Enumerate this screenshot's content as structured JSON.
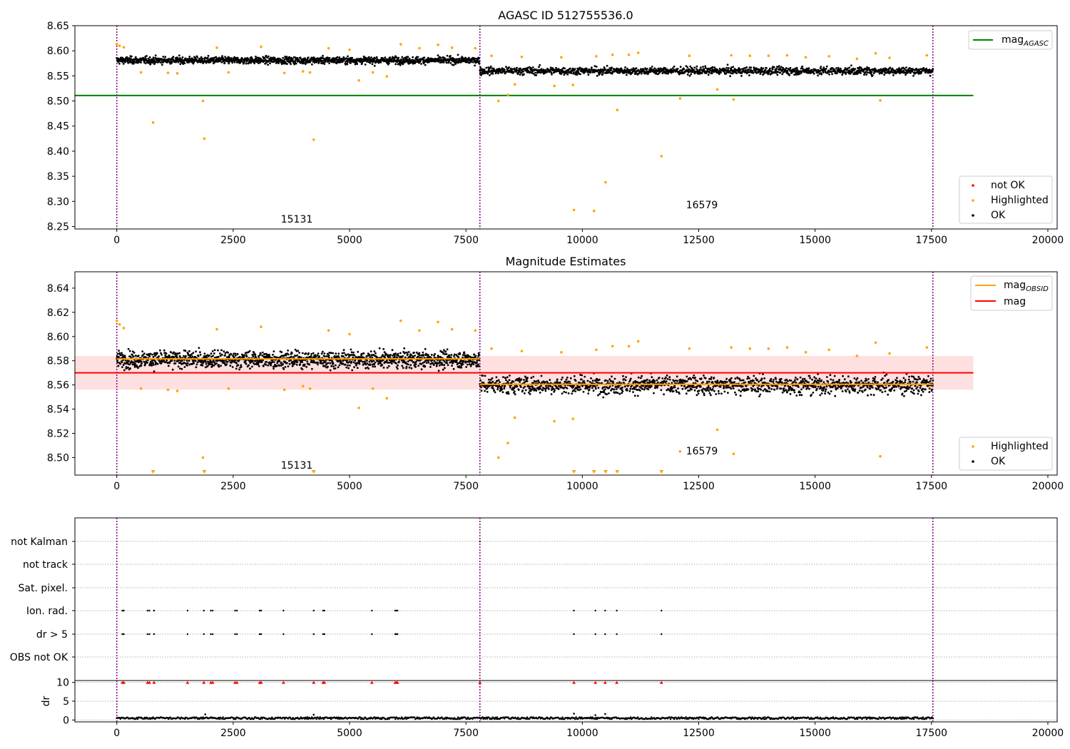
{
  "chart_data": [
    {
      "id": "top",
      "type": "scatter",
      "title": "AGASC ID 512755536.0",
      "xlim": [
        -900,
        20200
      ],
      "ylim": [
        8.245,
        8.65
      ],
      "xticks": [
        0,
        2500,
        5000,
        7500,
        10000,
        12500,
        15000,
        17500,
        20000
      ],
      "yticks": [
        8.25,
        8.3,
        8.35,
        8.4,
        8.45,
        8.5,
        8.55,
        8.6,
        8.65
      ],
      "ytick_labels": [
        "8.25",
        "8.30",
        "8.35",
        "8.40",
        "8.45",
        "8.50",
        "8.55",
        "8.60",
        "8.65"
      ],
      "obs_boundaries": [
        0,
        7800,
        17530
      ],
      "obs_labels": [
        {
          "text": "15131",
          "x": 3900,
          "y": 8.262
        },
        {
          "text": "16579",
          "x": 12600,
          "y": 8.29
        }
      ],
      "hlines": [
        {
          "name": "mag_AGASC",
          "y": 8.511,
          "x0": -900,
          "x1": 18400,
          "color": "#008000"
        }
      ],
      "ok_bands": [
        {
          "x0": 0,
          "x1": 7790,
          "center": 8.581,
          "spread": 0.022
        },
        {
          "x0": 7800,
          "x1": 17530,
          "center": 8.56,
          "spread": 0.024
        }
      ],
      "highlighted": [
        [
          0,
          8.613
        ],
        [
          60,
          8.61
        ],
        [
          150,
          8.607
        ],
        [
          520,
          8.557
        ],
        [
          780,
          8.457
        ],
        [
          1100,
          8.556
        ],
        [
          1300,
          8.555
        ],
        [
          1850,
          8.5
        ],
        [
          1880,
          8.425
        ],
        [
          2150,
          8.606
        ],
        [
          2400,
          8.557
        ],
        [
          3100,
          8.608
        ],
        [
          3600,
          8.556
        ],
        [
          4000,
          8.559
        ],
        [
          4150,
          8.557
        ],
        [
          4230,
          8.423
        ],
        [
          4550,
          8.605
        ],
        [
          5000,
          8.602
        ],
        [
          5200,
          8.541
        ],
        [
          5500,
          8.557
        ],
        [
          5800,
          8.549
        ],
        [
          6100,
          8.613
        ],
        [
          6500,
          8.605
        ],
        [
          6900,
          8.612
        ],
        [
          7200,
          8.606
        ],
        [
          7700,
          8.605
        ],
        [
          8050,
          8.59
        ],
        [
          8200,
          8.5
        ],
        [
          8400,
          8.512
        ],
        [
          8550,
          8.533
        ],
        [
          8700,
          8.588
        ],
        [
          9400,
          8.53
        ],
        [
          9550,
          8.587
        ],
        [
          9800,
          8.532
        ],
        [
          9820,
          8.283
        ],
        [
          10250,
          8.281
        ],
        [
          10300,
          8.589
        ],
        [
          10500,
          8.338
        ],
        [
          10650,
          8.592
        ],
        [
          10750,
          8.482
        ],
        [
          11000,
          8.592
        ],
        [
          11200,
          8.596
        ],
        [
          11700,
          8.39
        ],
        [
          12100,
          8.505
        ],
        [
          12300,
          8.59
        ],
        [
          12900,
          8.523
        ],
        [
          13200,
          8.591
        ],
        [
          13250,
          8.503
        ],
        [
          13600,
          8.59
        ],
        [
          14000,
          8.59
        ],
        [
          14400,
          8.591
        ],
        [
          14800,
          8.587
        ],
        [
          15300,
          8.589
        ],
        [
          15900,
          8.584
        ],
        [
          16300,
          8.595
        ],
        [
          16400,
          8.501
        ],
        [
          16600,
          8.586
        ],
        [
          17400,
          8.591
        ]
      ],
      "legend": {
        "placement": "upper right",
        "entries": [
          {
            "label": "mag",
            "subscript": "AGASC",
            "kind": "line",
            "color": "#008000"
          }
        ]
      },
      "legend2": {
        "placement": "lower right",
        "entries": [
          {
            "label": "not OK",
            "kind": "dot",
            "color": "#ff0000"
          },
          {
            "label": "Highlighted",
            "kind": "dot",
            "color": "#ffa500"
          },
          {
            "label": "OK",
            "kind": "dot",
            "color": "#000000"
          }
        ]
      }
    },
    {
      "id": "middle",
      "type": "scatter",
      "title": "Magnitude Estimates",
      "xlim": [
        -900,
        20200
      ],
      "ylim": [
        8.4855,
        8.6535
      ],
      "xticks": [
        0,
        2500,
        5000,
        7500,
        10000,
        12500,
        15000,
        17500,
        20000
      ],
      "yticks": [
        8.5,
        8.52,
        8.54,
        8.56,
        8.58,
        8.6,
        8.62,
        8.64
      ],
      "ytick_labels": [
        "8.50",
        "8.52",
        "8.54",
        "8.56",
        "8.58",
        "8.60",
        "8.62",
        "8.64"
      ],
      "obs_boundaries": [
        0,
        7800,
        17530
      ],
      "obs_labels": [
        {
          "text": "15131",
          "x": 3900,
          "y": 8.4915
        },
        {
          "text": "16579",
          "x": 12600,
          "y": 8.505
        }
      ],
      "band": {
        "y0": 8.556,
        "y1": 8.584,
        "x0": -900,
        "x1": 18400,
        "color": "rgba(255,0,0,0.12)"
      },
      "hlines": [
        {
          "name": "mag",
          "y": 8.57,
          "x0": -900,
          "x1": 18400,
          "color": "#ff0000"
        },
        {
          "name": "mag_OBSID_1",
          "y": 8.5815,
          "x0": 0,
          "x1": 7790,
          "color": "#ffa500"
        },
        {
          "name": "mag_OBSID_2",
          "y": 8.5605,
          "x0": 7800,
          "x1": 17530,
          "color": "#ffa500"
        }
      ],
      "ok_bands": [
        {
          "x0": 0,
          "x1": 7790,
          "center": 8.581,
          "spread": 0.022
        },
        {
          "x0": 7800,
          "x1": 17530,
          "center": 8.56,
          "spread": 0.024
        }
      ],
      "highlighted": [
        [
          0,
          8.613
        ],
        [
          60,
          8.61
        ],
        [
          150,
          8.607
        ],
        [
          520,
          8.557
        ],
        [
          1100,
          8.556
        ],
        [
          1300,
          8.555
        ],
        [
          1850,
          8.5
        ],
        [
          2150,
          8.606
        ],
        [
          2400,
          8.557
        ],
        [
          3100,
          8.608
        ],
        [
          3600,
          8.556
        ],
        [
          4000,
          8.559
        ],
        [
          4150,
          8.557
        ],
        [
          4550,
          8.605
        ],
        [
          5000,
          8.602
        ],
        [
          5200,
          8.541
        ],
        [
          5500,
          8.557
        ],
        [
          5800,
          8.549
        ],
        [
          6100,
          8.613
        ],
        [
          6500,
          8.605
        ],
        [
          6900,
          8.612
        ],
        [
          7200,
          8.606
        ],
        [
          7700,
          8.605
        ],
        [
          8050,
          8.59
        ],
        [
          8200,
          8.5
        ],
        [
          8400,
          8.512
        ],
        [
          8550,
          8.533
        ],
        [
          8700,
          8.588
        ],
        [
          9400,
          8.53
        ],
        [
          9550,
          8.587
        ],
        [
          9800,
          8.532
        ],
        [
          10300,
          8.589
        ],
        [
          10650,
          8.592
        ],
        [
          11000,
          8.592
        ],
        [
          11200,
          8.596
        ],
        [
          12100,
          8.505
        ],
        [
          12300,
          8.59
        ],
        [
          12900,
          8.523
        ],
        [
          13200,
          8.591
        ],
        [
          13250,
          8.503
        ],
        [
          13600,
          8.59
        ],
        [
          14000,
          8.59
        ],
        [
          14400,
          8.591
        ],
        [
          14800,
          8.587
        ],
        [
          15300,
          8.589
        ],
        [
          15900,
          8.584
        ],
        [
          16300,
          8.595
        ],
        [
          16400,
          8.501
        ],
        [
          16600,
          8.586
        ],
        [
          17400,
          8.591
        ]
      ],
      "offscale_markers": [
        780,
        1880,
        4230,
        9820,
        10250,
        10500,
        10750,
        11700
      ],
      "legend": {
        "placement": "upper right",
        "entries": [
          {
            "label": "mag",
            "subscript": "OBSID",
            "kind": "line",
            "color": "#ffa500"
          },
          {
            "label": "mag",
            "kind": "line",
            "color": "#ff0000"
          }
        ]
      },
      "legend2": {
        "placement": "lower right",
        "entries": [
          {
            "label": "Highlighted",
            "kind": "dot",
            "color": "#ffa500"
          },
          {
            "label": "OK",
            "kind": "dot",
            "color": "#000000"
          }
        ]
      }
    },
    {
      "id": "flags",
      "type": "scatter",
      "xlim": [
        -900,
        20200
      ],
      "obs_boundaries": [
        0,
        7800,
        17530
      ],
      "categories": [
        "not Kalman",
        "not track",
        "Sat. pixel.",
        "Ion. rad.",
        "dr > 5",
        "OBS not OK"
      ],
      "flag_x": [
        120,
        150,
        660,
        700,
        800,
        1520,
        1870,
        2020,
        2060,
        2540,
        2580,
        3070,
        3100,
        3580,
        4230,
        4430,
        4460,
        5480,
        5980,
        6000,
        6030,
        9820,
        10280,
        10490,
        10740,
        11700
      ],
      "kalman_x": [
        7800
      ]
    },
    {
      "id": "dr",
      "type": "scatter",
      "ylabel": "dr",
      "xlim": [
        -900,
        20200
      ],
      "ylim": [
        -0.5,
        10.5
      ],
      "yticks": [
        0,
        5,
        10
      ],
      "ytick_labels": [
        "0",
        "5",
        "10"
      ],
      "xticks": [
        0,
        2500,
        5000,
        7500,
        10000,
        12500,
        15000,
        17500,
        20000
      ],
      "obs_boundaries": [
        0,
        7800,
        17530
      ],
      "outliers": [
        [
          1900,
          1.5
        ],
        [
          4230,
          1.4
        ],
        [
          9820,
          1.7
        ],
        [
          10280,
          1.3
        ],
        [
          10490,
          1.6
        ]
      ]
    }
  ],
  "colors": {
    "ok": "#000000",
    "highlighted": "#ffa500",
    "not_ok": "#ff0000",
    "agasc": "#008000",
    "obsid": "#ffa500",
    "mag": "#ff0000",
    "boundary": "#800080"
  }
}
